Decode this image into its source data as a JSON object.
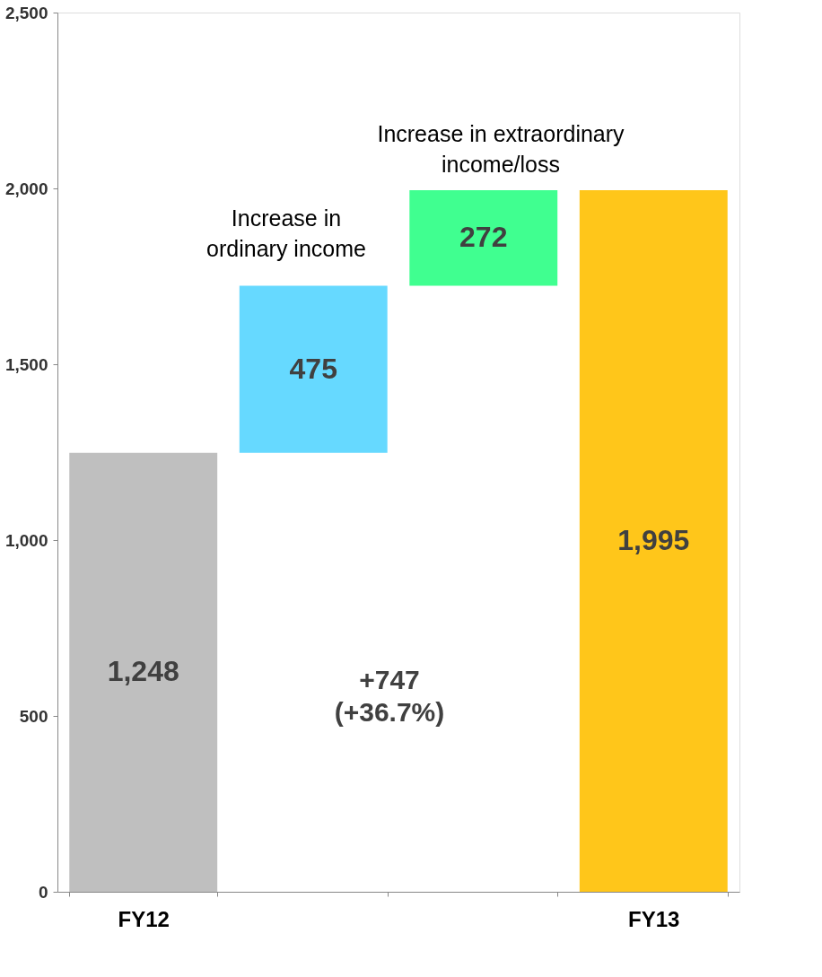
{
  "chart_data": {
    "type": "bar",
    "categories": [
      "FY12",
      null,
      null,
      "FY13"
    ],
    "values": [
      1248,
      475,
      272,
      1995
    ],
    "base": [
      0,
      1248,
      1723,
      0
    ],
    "colors": [
      "#bfbfbf",
      "#66d9ff",
      "#40ff90",
      "#ffc61a"
    ],
    "value_labels": [
      "1,248",
      "475",
      "272",
      "1,995"
    ],
    "ylim": [
      0,
      2500
    ],
    "yticks": [
      {
        "value": 0,
        "label": "0"
      },
      {
        "value": 500,
        "label": "500"
      },
      {
        "value": 1000,
        "label": "1,000"
      },
      {
        "value": 1500,
        "label": "1,500"
      },
      {
        "value": 2000,
        "label": "2,000"
      },
      {
        "value": 2500,
        "label": "2,500"
      }
    ],
    "grid": false,
    "annotations": [
      "Increase in\nordinary income",
      "Increase in extraordinary\nincome/loss",
      "+747\n(+36.7%)"
    ]
  }
}
